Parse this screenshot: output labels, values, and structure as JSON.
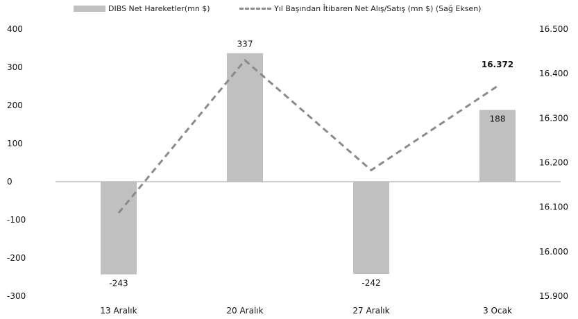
{
  "chart_data": {
    "type": "bar",
    "categories": [
      "13 Aralık",
      "20 Aralık",
      "27 Aralık",
      "3 Ocak"
    ],
    "series": [
      {
        "name": "DIBS Net Hareketler(mn $)",
        "type": "bar",
        "axis": "left",
        "values": [
          -243,
          337,
          -242,
          188
        ],
        "value_labels": [
          "-243",
          "337",
          "-242",
          "188"
        ],
        "color": "#c0c0c0"
      },
      {
        "name": "Yıl Başından İtibaren Net Alış/Satış (mn $) (Sağ Eksen)",
        "type": "line",
        "axis": "right",
        "style": "dashed",
        "values": [
          16087,
          16430,
          16183,
          16372
        ],
        "last_label": "16.372",
        "color": "#8a8a8a"
      }
    ],
    "y_left": {
      "lim": [
        -300,
        400
      ],
      "ticks": [
        400,
        300,
        200,
        100,
        0,
        -100,
        -200,
        -300
      ],
      "tick_labels": [
        "400",
        "300",
        "200",
        "100",
        "0",
        "-100",
        "-200",
        "-300"
      ]
    },
    "y_right": {
      "lim": [
        15900,
        16500
      ],
      "ticks": [
        16500,
        16400,
        16300,
        16200,
        16100,
        16000,
        15900
      ],
      "tick_labels": [
        "16.500",
        "16.400",
        "16.300",
        "16.200",
        "16.100",
        "16.000",
        "15.900"
      ]
    },
    "grid": false,
    "legend_position": "top"
  }
}
